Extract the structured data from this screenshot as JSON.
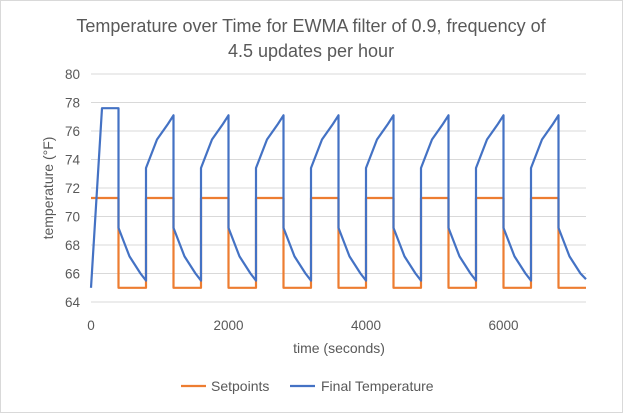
{
  "chart_data": {
    "type": "line",
    "title_lines": [
      "Temperature over Time for EWMA filter of 0.9, frequency of",
      "4.5 updates per hour"
    ],
    "xlabel": "time (seconds)",
    "ylabel": "temperature (°F)",
    "xlim": [
      0,
      7200
    ],
    "ylim": [
      64,
      80
    ],
    "xticks": [
      0,
      2000,
      4000,
      6000
    ],
    "yticks": [
      64,
      66,
      68,
      70,
      72,
      74,
      76,
      78,
      80
    ],
    "grid": "horizontal",
    "legend_position": "bottom",
    "series": [
      {
        "name": "Setpoints",
        "color": "#ed7d31",
        "x": [
          0,
          400,
          400,
          800,
          800,
          1200,
          1200,
          1600,
          1600,
          2000,
          2000,
          2400,
          2400,
          2800,
          2800,
          3200,
          3200,
          3600,
          3600,
          4000,
          4000,
          4400,
          4400,
          4800,
          4800,
          5200,
          5200,
          5600,
          5600,
          6000,
          6000,
          6400,
          6400,
          6800,
          6800,
          7200
        ],
        "y": [
          71.3,
          71.3,
          65.0,
          65.0,
          71.3,
          71.3,
          65.0,
          65.0,
          71.3,
          71.3,
          65.0,
          65.0,
          71.3,
          71.3,
          65.0,
          65.0,
          71.3,
          71.3,
          65.0,
          65.0,
          71.3,
          71.3,
          65.0,
          65.0,
          71.3,
          71.3,
          65.0,
          65.0,
          71.3,
          71.3,
          65.0,
          65.0,
          71.3,
          71.3,
          65.0,
          65.0
        ]
      },
      {
        "name": "Final Temperature",
        "color": "#4472c4",
        "x": [
          0,
          160,
          400,
          400,
          560,
          720,
          800,
          800,
          960,
          1120,
          1200,
          1200,
          1360,
          1520,
          1600,
          1600,
          1760,
          1920,
          2000,
          2000,
          2160,
          2320,
          2400,
          2400,
          2560,
          2720,
          2800,
          2800,
          2960,
          3120,
          3200,
          3200,
          3360,
          3520,
          3600,
          3600,
          3760,
          3920,
          4000,
          4000,
          4160,
          4320,
          4400,
          4400,
          4560,
          4720,
          4800,
          4800,
          4960,
          5120,
          5200,
          5200,
          5360,
          5520,
          5600,
          5600,
          5760,
          5920,
          6000,
          6000,
          6160,
          6320,
          6400,
          6400,
          6560,
          6720,
          6800,
          6800,
          6960,
          7120,
          7200
        ],
        "y": [
          65.0,
          77.6,
          77.6,
          69.2,
          67.2,
          66.0,
          65.5,
          73.4,
          75.4,
          76.5,
          77.1,
          69.2,
          67.2,
          66.0,
          65.5,
          73.4,
          75.4,
          76.5,
          77.1,
          69.2,
          67.2,
          66.0,
          65.5,
          73.4,
          75.4,
          76.5,
          77.1,
          69.2,
          67.2,
          66.0,
          65.5,
          73.4,
          75.4,
          76.5,
          77.1,
          69.2,
          67.2,
          66.0,
          65.5,
          73.4,
          75.4,
          76.5,
          77.1,
          69.2,
          67.2,
          66.0,
          65.5,
          73.4,
          75.4,
          76.5,
          77.1,
          69.2,
          67.2,
          66.0,
          65.5,
          73.4,
          75.4,
          76.5,
          77.1,
          69.2,
          67.2,
          66.0,
          65.5,
          73.4,
          75.4,
          76.5,
          77.1,
          69.2,
          67.2,
          66.0,
          65.6
        ]
      }
    ]
  }
}
